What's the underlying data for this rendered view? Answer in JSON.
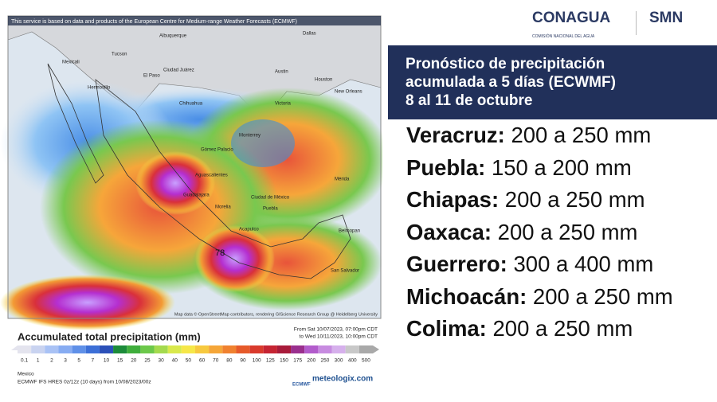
{
  "header": {
    "conagua": "CONAGUA",
    "conagua_sub": "COMISIÓN NACIONAL DEL AGUA",
    "smn": "SMN"
  },
  "map": {
    "credit": "This service is based on data and products of the European Centre for Medium-range Weather Forecasts (ECMWF)",
    "attribution": "Map data © OpenStreetMap contributors, rendering GIScience Research Group @ Heidelberg University",
    "cities": [
      "Albuquerque",
      "Tucson",
      "Mexicali",
      "El Paso",
      "Ciudad Juárez",
      "Chihuahua",
      "Hermosillo",
      "Dallas",
      "Austin",
      "Houston",
      "Monterrey",
      "Victoria",
      "New Orleans",
      "Gómez Palacio",
      "Aguascalientes",
      "Guadalajara",
      "Morelia",
      "Ciudad de México",
      "Puebla",
      "Acapulco",
      "Mérida",
      "Belmopan",
      "San Salvador",
      "78"
    ]
  },
  "legend": {
    "title": "Accumulated total precipitation (mm)",
    "from": "From Sat 10/07/2023, 07:00pm CDT",
    "to": "to Wed 10/11/2023, 10:00pm CDT",
    "labels": [
      "0.1",
      "1",
      "2",
      "3",
      "5",
      "7",
      "10",
      "15",
      "20",
      "25",
      "30",
      "40",
      "50",
      "60",
      "70",
      "80",
      "90",
      "100",
      "125",
      "150",
      "175",
      "200",
      "250",
      "300",
      "400",
      "500"
    ],
    "colors": [
      "#e4e4ee",
      "#c9d3f0",
      "#a9c2f5",
      "#87acf2",
      "#5f90e8",
      "#3c6fd7",
      "#2b50b8",
      "#1c8b3a",
      "#3fae3c",
      "#6cc84a",
      "#a4da4e",
      "#d9e94c",
      "#f6e748",
      "#f7c93f",
      "#f5a638",
      "#f0812f",
      "#e65a2a",
      "#d93a2c",
      "#c52432",
      "#a81b3a",
      "#9a2f8e",
      "#b25ccc",
      "#c78be0",
      "#d6b0ec",
      "#c8c8c8",
      "#a9a9a9"
    ],
    "region": "Mexico",
    "model": "ECMWF IFS HRES 0z/12z (10 days) from 10/08/2023/00z",
    "ecmwf": "ECMWF",
    "meteologix": "meteologix.com"
  },
  "panel": {
    "title": [
      "Pronóstico de precipitación",
      "acumulada a 5 días (ECWMF)",
      "8 al 11 de octubre"
    ],
    "items": [
      {
        "state": "Veracruz:",
        "amount": "200 a 250 mm"
      },
      {
        "state": "Puebla:",
        "amount": "150 a 200 mm"
      },
      {
        "state": "Chiapas:",
        "amount": "200 a 250 mm"
      },
      {
        "state": "Oaxaca:",
        "amount": "200 a 250 mm"
      },
      {
        "state": "Guerrero:",
        "amount": "300 a 400 mm"
      },
      {
        "state": "Michoacán:",
        "amount": "200 a 250 mm"
      },
      {
        "state": "Colima:",
        "amount": "200 a 250 mm"
      }
    ]
  }
}
